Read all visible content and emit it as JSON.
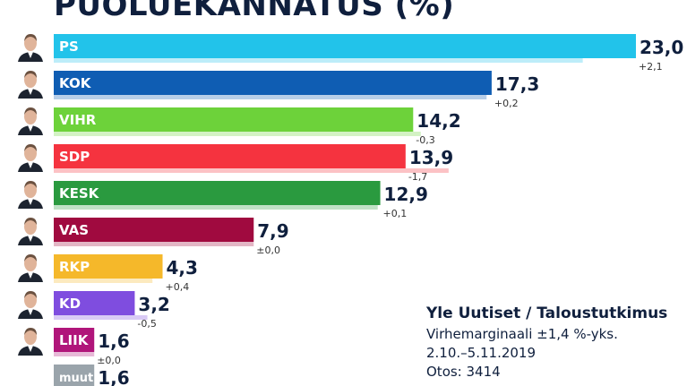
{
  "chart_data": {
    "type": "bar",
    "orientation": "horizontal",
    "title": "PUOLUEKANNATUS (%)",
    "categories": [
      "PS",
      "KOK",
      "VIHR",
      "SDP",
      "KESK",
      "VAS",
      "RKP",
      "KD",
      "LIIK",
      "muut"
    ],
    "series": [
      {
        "values": [
          23.0,
          17.3,
          14.2,
          13.9,
          12.9,
          7.9,
          4.3,
          3.2,
          1.6,
          1.6
        ]
      }
    ],
    "value_labels": [
      "23,0",
      "17,3",
      "14,2",
      "13,9",
      "12,9",
      "7,9",
      "4,3",
      "3,2",
      "1,6",
      "1,6"
    ],
    "changes": [
      2.1,
      0.2,
      -0.3,
      -1.7,
      0.1,
      0.0,
      0.4,
      -0.5,
      0.0,
      null
    ],
    "change_labels": [
      "+2,1",
      "+0,2",
      "-0,3",
      "-1,7",
      "+0,1",
      "±0,0",
      "+0,4",
      "-0,5",
      "±0,0",
      ""
    ],
    "colors": [
      "#22c3ea",
      "#0f5db3",
      "#6dd23a",
      "#f5333f",
      "#2a9a3f",
      "#a00a3f",
      "#f5b82a",
      "#7f4ddf",
      "#b0157a",
      "#9aa4ab"
    ],
    "portraits": [
      true,
      true,
      true,
      true,
      true,
      true,
      true,
      true,
      true,
      false
    ],
    "grid": false
  },
  "source": {
    "title": "Yle Uutiset / Taloustutkimus",
    "margin": "Virhemarginaali ±1,4 %-yks.",
    "date": "2.10.–5.11.2019",
    "sample": "Otos: 3414"
  }
}
